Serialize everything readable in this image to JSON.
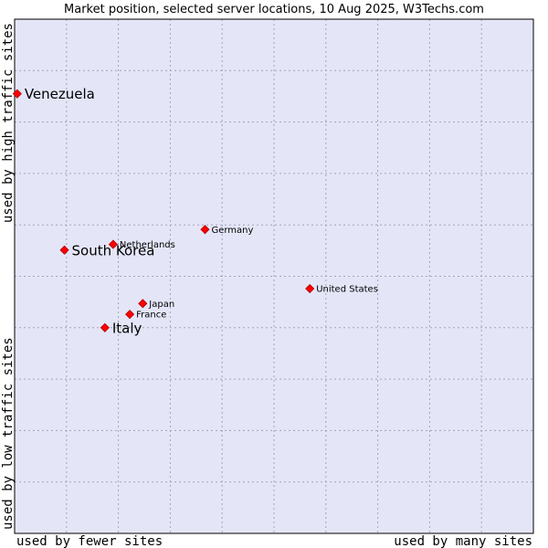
{
  "chart_data": {
    "type": "scatter",
    "title": "Market position, selected server locations, 10 Aug 2025, W3Techs.com",
    "xlabel_left": "used by fewer sites",
    "xlabel_right": "used by many sites",
    "ylabel_bottom": "used by low traffic sites",
    "ylabel_top": "used by high traffic sites",
    "xlim": [
      0,
      100
    ],
    "ylim": [
      0,
      100
    ],
    "grid": true,
    "colors": {
      "plot_background": "#e4e6f8",
      "marker_fill": "#ff0000",
      "marker_stroke": "#aa0000",
      "frame": "#000000"
    },
    "points": [
      {
        "label": "Venezuela",
        "x": 0.5,
        "y": 85.5,
        "emphasis": true
      },
      {
        "label": "South Korea",
        "x": 9.6,
        "y": 55.1,
        "emphasis": true
      },
      {
        "label": "Italy",
        "x": 17.4,
        "y": 40.0,
        "emphasis": true
      },
      {
        "label": "Netherlands",
        "x": 19.0,
        "y": 56.2,
        "emphasis": false
      },
      {
        "label": "Germany",
        "x": 36.7,
        "y": 59.1,
        "emphasis": false
      },
      {
        "label": "United States",
        "x": 56.9,
        "y": 47.6,
        "emphasis": false
      },
      {
        "label": "Japan",
        "x": 24.7,
        "y": 44.7,
        "emphasis": false
      },
      {
        "label": "France",
        "x": 22.2,
        "y": 42.6,
        "emphasis": false
      }
    ]
  }
}
